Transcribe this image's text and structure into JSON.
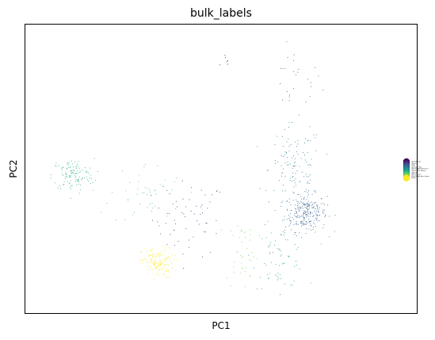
{
  "chart_data": {
    "type": "scatter",
    "title": "bulk_labels",
    "xlabel": "PC1",
    "ylabel": "PC2",
    "xticks": [],
    "yticks": [],
    "grid": false,
    "legend": {
      "placement": "right",
      "entries": [
        {
          "label": "CD14+ Monocyte",
          "color": "#440154"
        },
        {
          "label": "CD19+ B",
          "color": "#482475"
        },
        {
          "label": "CD34+",
          "color": "#414487"
        },
        {
          "label": "CD4+/CD25 T Reg",
          "color": "#355f8d"
        },
        {
          "label": "CD4+/CD45RA+/CD25- Naive T",
          "color": "#2a788e"
        },
        {
          "label": "CD4+/CD45RO+ Memory",
          "color": "#21918c"
        },
        {
          "label": "CD56+ NK",
          "color": "#22a884"
        },
        {
          "label": "CD8+ Cytotoxic T",
          "color": "#44bf70"
        },
        {
          "label": "CD8+/CD45RA+ Naive Cytotoxic",
          "color": "#7ad151"
        },
        {
          "label": "Dendritic",
          "color": "#fde725"
        }
      ]
    },
    "clusters": [
      {
        "name": "CD14+ Monocyte",
        "color": "#440154",
        "center": [
          -0.1,
          0.95
        ],
        "spread": [
          0.06,
          0.08
        ],
        "n": 6
      },
      {
        "name": "CD19+ B",
        "color": "#482475",
        "center": [
          -0.45,
          -0.3
        ],
        "spread": [
          0.35,
          0.3
        ],
        "n": 60
      },
      {
        "name": "CD34+",
        "color": "#414487",
        "center": [
          0.55,
          0.8
        ],
        "spread": [
          0.25,
          0.25
        ],
        "n": 25
      },
      {
        "name": "CD4+/CD25 T Reg",
        "color": "#355f8d",
        "center": [
          0.65,
          -0.25
        ],
        "spread": [
          0.2,
          0.15
        ],
        "n": 260
      },
      {
        "name": "CD4+/CD45RA+/CD25- Naive T",
        "color": "#2a788e",
        "center": [
          0.55,
          0.1
        ],
        "spread": [
          0.25,
          0.35
        ],
        "n": 120
      },
      {
        "name": "CD4+/CD45RO+ Memory",
        "color": "#21918c",
        "center": [
          0.4,
          -0.6
        ],
        "spread": [
          0.25,
          0.25
        ],
        "n": 70
      },
      {
        "name": "CD56+ NK",
        "color": "#22a884",
        "center": [
          -1.55,
          0.05
        ],
        "spread": [
          0.2,
          0.13
        ],
        "n": 120
      },
      {
        "name": "CD8+ Cytotoxic T",
        "color": "#44bf70",
        "center": [
          -0.85,
          -0.1
        ],
        "spread": [
          0.35,
          0.25
        ],
        "n": 50
      },
      {
        "name": "CD8+/CD45RA+ Naive Cytotoxic",
        "color": "#7ad151",
        "center": [
          0.05,
          -0.55
        ],
        "spread": [
          0.15,
          0.3
        ],
        "n": 40
      },
      {
        "name": "Dendritic",
        "color": "#fde725",
        "center": [
          -0.75,
          -0.65
        ],
        "spread": [
          0.15,
          0.12
        ],
        "n": 160
      }
    ],
    "xlim": [
      -2.0,
      1.7
    ],
    "ylim": [
      -1.05,
      1.25
    ]
  }
}
